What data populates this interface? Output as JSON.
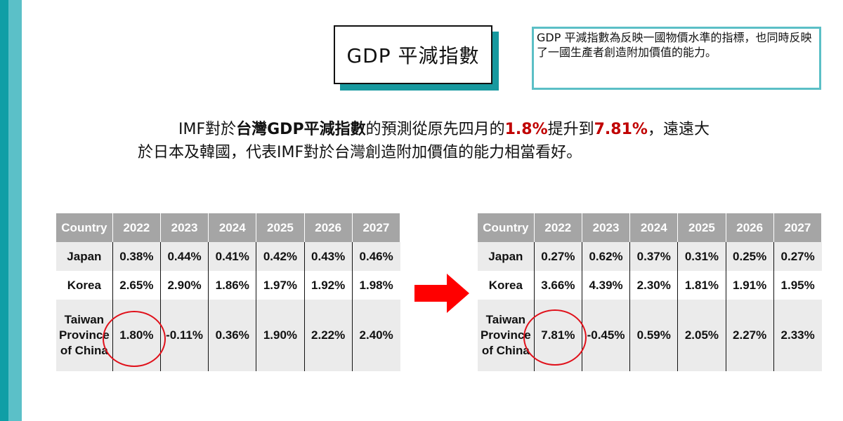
{
  "title": "GDP 平減指數",
  "note": "GDP 平減指數為反映一國物價水準的指標，也同時反映了一國生產者創造附加價值的能力。",
  "summary": {
    "s1": "IMF對於",
    "s2": "台灣GDP平減指數",
    "s3": "的預測從原先四月的",
    "s4": "1.8%",
    "s5": "提升到",
    "s6": "7.81%",
    "s7": "，遠遠大於日本及韓國，代表IMF對於台灣創造附加價值的能力相當看好。"
  },
  "table_before": {
    "headers": [
      "Country",
      "2022",
      "2023",
      "2024",
      "2025",
      "2026",
      "2027"
    ],
    "rows": [
      {
        "country": "Japan",
        "values": [
          "0.38%",
          "0.44%",
          "0.41%",
          "0.42%",
          "0.43%",
          "0.46%"
        ]
      },
      {
        "country": "Korea",
        "values": [
          "2.65%",
          "2.90%",
          "1.86%",
          "1.97%",
          "1.92%",
          "1.98%"
        ]
      },
      {
        "country": "Taiwan Province of China",
        "values": [
          "1.80%",
          "-0.11%",
          "0.36%",
          "1.90%",
          "2.22%",
          "2.40%"
        ]
      }
    ]
  },
  "table_after": {
    "headers": [
      "Country",
      "2022",
      "2023",
      "2024",
      "2025",
      "2026",
      "2027"
    ],
    "rows": [
      {
        "country": "Japan",
        "values": [
          "0.27%",
          "0.62%",
          "0.37%",
          "0.31%",
          "0.25%",
          "0.27%"
        ]
      },
      {
        "country": "Korea",
        "values": [
          "3.66%",
          "4.39%",
          "2.30%",
          "1.81%",
          "1.91%",
          "1.95%"
        ]
      },
      {
        "country": "Taiwan Province of China",
        "values": [
          "7.81%",
          "-0.45%",
          "0.59%",
          "2.05%",
          "2.27%",
          "2.33%"
        ]
      }
    ]
  },
  "colors": {
    "accent_teal": "#0f9ea6",
    "accent_light_teal": "#5bc0c8",
    "highlight_red": "#c00000",
    "circle_red": "#e0101a",
    "arrow_red": "#ff0000",
    "header_gray": "#a5a5a5"
  },
  "icons": {
    "arrow": "right-arrow-icon",
    "circle": "highlight-circle"
  }
}
